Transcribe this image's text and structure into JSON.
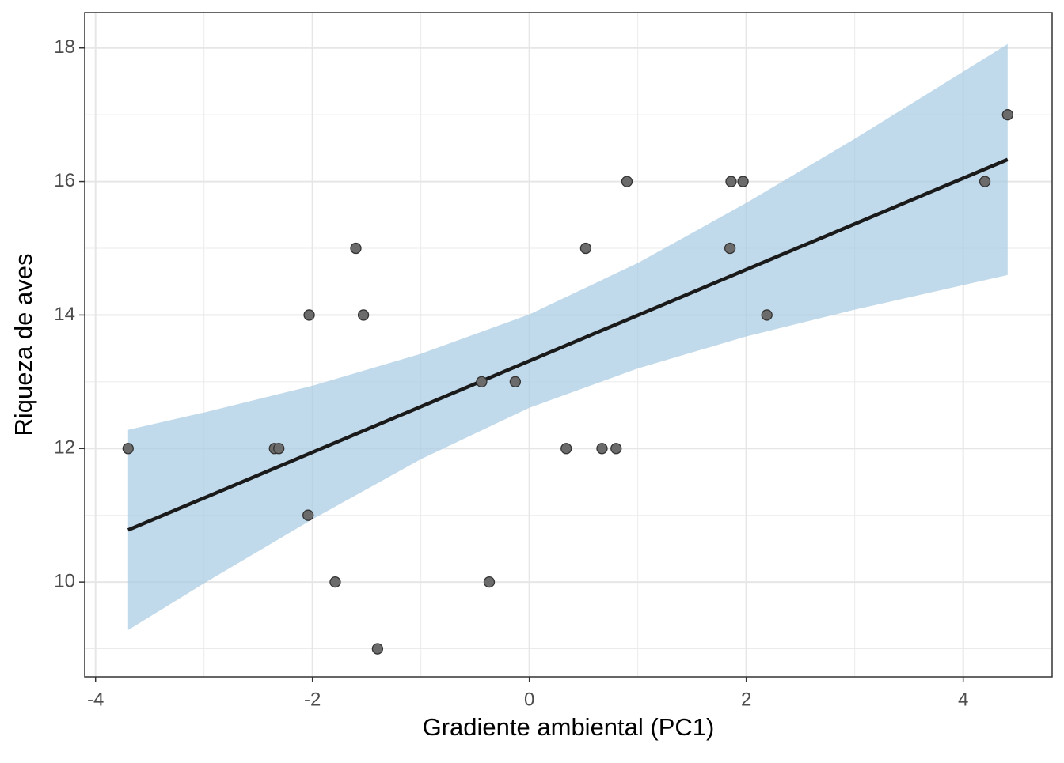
{
  "chart_data": {
    "type": "scatter",
    "x_label": "Gradiente ambiental (PC1)",
    "y_label": "Riqueza de aves",
    "x": [
      -3.7,
      -2.35,
      -2.31,
      -2.04,
      -2.03,
      -1.79,
      -1.6,
      -1.53,
      -1.4,
      -0.44,
      -0.37,
      -0.13,
      0.34,
      0.52,
      0.67,
      0.8,
      0.9,
      1.85,
      1.86,
      1.97,
      2.19,
      4.2,
      4.41
    ],
    "y": [
      12,
      12,
      12,
      11,
      14,
      10,
      15,
      14,
      9,
      13,
      10,
      13,
      12,
      15,
      12,
      12,
      16,
      15,
      16,
      16,
      14,
      16,
      17
    ],
    "point_color": "#6b6b6b",
    "fit": {
      "x": [
        -3.7,
        4.41
      ],
      "y": [
        10.78,
        16.33
      ],
      "color": "#1a1a1a"
    },
    "band": {
      "x": [
        -3.7,
        -3,
        -2,
        -1,
        0,
        1,
        2,
        3,
        4.41
      ],
      "lower": [
        9.28,
        9.98,
        10.94,
        11.84,
        12.61,
        13.2,
        13.68,
        14.08,
        14.6
      ],
      "upper": [
        12.28,
        12.54,
        12.94,
        13.42,
        14.01,
        14.78,
        15.68,
        16.64,
        18.06
      ],
      "color": "#a6cbe3"
    },
    "xlim": [
      -4.1,
      4.82
    ],
    "ylim": [
      8.58,
      18.53
    ],
    "xticks": [
      -4,
      -2,
      0,
      2,
      4
    ],
    "yticks": [
      10,
      12,
      14,
      16,
      18
    ],
    "xminor": [
      -3,
      -1,
      1,
      3
    ],
    "yminor": [
      9,
      11,
      13,
      15,
      17
    ],
    "grid": true
  }
}
